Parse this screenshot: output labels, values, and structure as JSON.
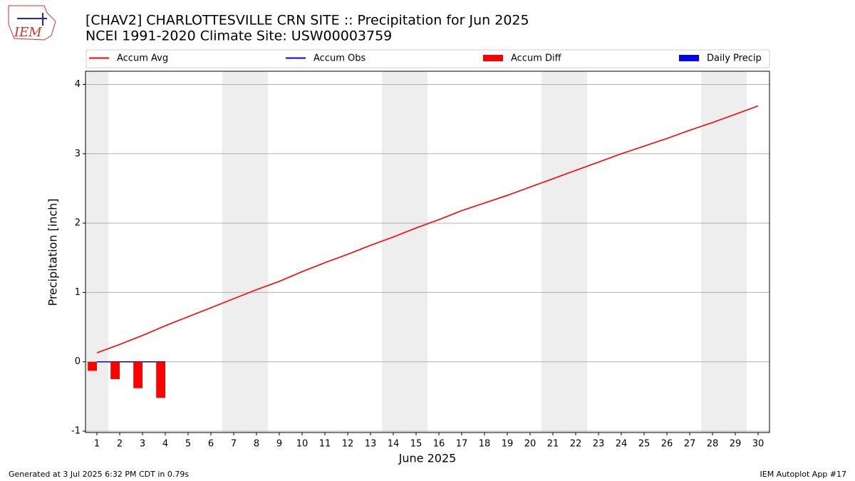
{
  "logo_text": "IEM",
  "footer_left": "Generated at 3 Jul 2025 6:32 PM CDT in 0.79s",
  "footer_right": "IEM Autoplot App #17",
  "chart_data": {
    "type": "line",
    "title": "[CHAV2] CHARLOTTESVILLE CRN SITE :: Precipitation for Jun 2025",
    "subtitle": "NCEI 1991-2020 Climate Site: USW00003759",
    "xlabel": "June 2025",
    "ylabel": "Precipitation [inch]",
    "x": [
      1,
      2,
      3,
      4,
      5,
      6,
      7,
      8,
      9,
      10,
      11,
      12,
      13,
      14,
      15,
      16,
      17,
      18,
      19,
      20,
      21,
      22,
      23,
      24,
      25,
      26,
      27,
      28,
      29,
      30
    ],
    "xlim": [
      0.5,
      30.5
    ],
    "xticks": [
      1,
      2,
      3,
      4,
      5,
      6,
      7,
      8,
      9,
      10,
      11,
      12,
      13,
      14,
      15,
      16,
      17,
      18,
      19,
      20,
      21,
      22,
      23,
      24,
      25,
      26,
      27,
      28,
      29,
      30
    ],
    "ylim": [
      -1.02,
      4.19
    ],
    "yticks": [
      -1,
      0,
      1,
      2,
      3,
      4
    ],
    "grid": true,
    "series": [
      {
        "name": "Accum Avg",
        "kind": "line",
        "color": "#ff0000",
        "values": [
          0.13,
          0.25,
          0.38,
          0.52,
          0.65,
          0.78,
          0.91,
          1.04,
          1.16,
          1.3,
          1.43,
          1.55,
          1.68,
          1.8,
          1.93,
          2.05,
          2.18,
          2.29,
          2.4,
          2.52,
          2.64,
          2.76,
          2.88,
          3.0,
          3.11,
          3.22,
          3.34,
          3.45,
          3.57,
          3.69
        ]
      },
      {
        "name": "Accum Obs",
        "kind": "line",
        "color": "#0000ff",
        "values": [
          0,
          0,
          0,
          0,
          null,
          null,
          null,
          null,
          null,
          null,
          null,
          null,
          null,
          null,
          null,
          null,
          null,
          null,
          null,
          null,
          null,
          null,
          null,
          null,
          null,
          null,
          null,
          null,
          null,
          null
        ]
      },
      {
        "name": "Accum Diff",
        "kind": "bar",
        "color": "#ff0000",
        "values": [
          -0.13,
          -0.25,
          -0.38,
          -0.52,
          null,
          null,
          null,
          null,
          null,
          null,
          null,
          null,
          null,
          null,
          null,
          null,
          null,
          null,
          null,
          null,
          null,
          null,
          null,
          null,
          null,
          null,
          null,
          null,
          null,
          null
        ]
      },
      {
        "name": "Daily Precip",
        "kind": "bar",
        "color": "#0000ff",
        "values": [
          0,
          0,
          0,
          0,
          null,
          null,
          null,
          null,
          null,
          null,
          null,
          null,
          null,
          null,
          null,
          null,
          null,
          null,
          null,
          null,
          null,
          null,
          null,
          null,
          null,
          null,
          null,
          null,
          null,
          null
        ]
      }
    ]
  }
}
